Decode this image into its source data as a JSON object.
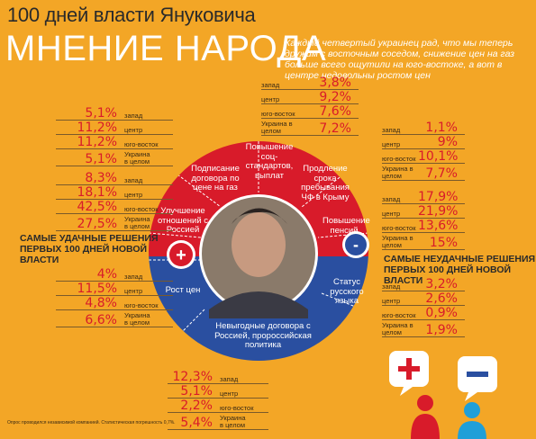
{
  "header": {
    "title": "100 дней власти Януковича",
    "subtitle": "МНЕНИЕ НАРОДА",
    "intro": "Каждый четвертый украинец рад, что мы теперь дружим с восточным соседом, снижение цен на газ больше всего ощутили на юго-востоке, а вот в центре недовольны ростом цен"
  },
  "labels": {
    "best": "САМЫЕ УДАЧНЫЕ РЕШЕНИЯ ПЕРВЫХ 100 ДНЕЙ НОВОЙ ВЛАСТИ",
    "worst": "САМЫЕ НЕУДАЧНЫЕ РЕШЕНИЯ ПЕРВЫХ 100 ДНЕЙ НОВОЙ ВЛАСТИ",
    "plus": "+",
    "minus": "-"
  },
  "segments": {
    "gas": "Подписание договора по цене на газ",
    "standards": "Повышение соц-стандартов, выплат",
    "fleet": "Продление срока пребывания ЧФ в Крыму",
    "russia": "Улучшение отношений с Россией",
    "pensions": "Повышение пенсий",
    "prices": "Рост цен",
    "language": "Статус русского языка",
    "bad_deals": "Невыгодные договора с Россией, пророссийская политика"
  },
  "region_labels": [
    "запад",
    "центр",
    "юго-восток",
    "Украина в целом"
  ],
  "groups": {
    "gas": [
      "5,1%",
      "11,2%",
      "11,2%",
      "5,1%"
    ],
    "standards": [
      "3,8%",
      "9,2%",
      "7,6%",
      "7,2%"
    ],
    "fleet": [
      "1,1%",
      "9%",
      "10,1%",
      "7,7%"
    ],
    "russia": [
      "8,3%",
      "18,1%",
      "42,5%",
      "27,5%"
    ],
    "pensions": [
      "17,9%",
      "21,9%",
      "13,6%",
      "15%"
    ],
    "prices": [
      "4%",
      "11,5%",
      "4,8%",
      "6,6%"
    ],
    "language": [
      "3,2%",
      "2,6%",
      "0,9%",
      "1,9%"
    ],
    "bad_deals": [
      "12,3%",
      "5,1%",
      "2,2%",
      "5,4%"
    ]
  },
  "footnote": "Опрос проводился независимой компанией. Статистическая погрешность 0,7%.",
  "colors": {
    "background": "#f3a626",
    "red": "#d81b2a",
    "blue": "#2a4fa0"
  },
  "icons": [
    "plus-person-icon",
    "minus-person-icon"
  ]
}
